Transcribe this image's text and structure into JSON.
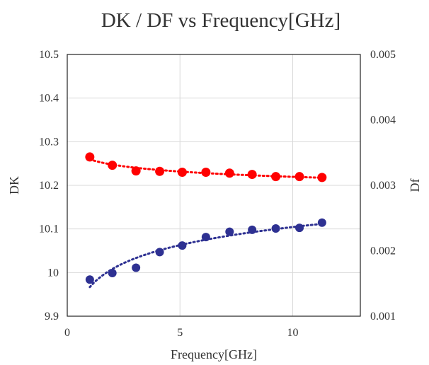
{
  "chart_data": {
    "type": "scatter",
    "title": "DK / DF vs Frequency[GHz]",
    "xlabel": "Frequency[GHz]",
    "ylabel_left": "DK",
    "ylabel_right": "Df",
    "xlim": [
      0,
      13
    ],
    "ylim_left": [
      9.9,
      10.5
    ],
    "ylim_right": [
      0.001,
      0.005
    ],
    "x_ticks": [
      "0",
      "5",
      "10"
    ],
    "y_left_ticks": [
      "9.9",
      "10",
      "10.1",
      "10.2",
      "10.3",
      "10.4",
      "10.5"
    ],
    "y_right_ticks": [
      "0.001",
      "0.002",
      "0.003",
      "0.004",
      "0.005"
    ],
    "grid": true,
    "series": [
      {
        "axis": "left",
        "color": "#ff0000",
        "trendline": "dotted",
        "x": [
          1.0,
          2.0,
          3.05,
          4.1,
          5.1,
          6.15,
          7.2,
          8.2,
          9.25,
          10.3,
          11.3
        ],
        "y": [
          10.265,
          10.246,
          10.233,
          10.232,
          10.23,
          10.23,
          10.228,
          10.225,
          10.22,
          10.22,
          10.218
        ]
      },
      {
        "axis": "right",
        "color": "#2e3192",
        "trendline": "dotted",
        "x": [
          1.0,
          2.0,
          3.05,
          4.1,
          5.1,
          6.15,
          7.2,
          8.2,
          9.25,
          10.3,
          11.3
        ],
        "y": [
          0.00156,
          0.00166,
          0.00174,
          0.00198,
          0.00208,
          0.00221,
          0.00229,
          0.00232,
          0.00234,
          0.00235,
          0.00243
        ]
      }
    ]
  }
}
